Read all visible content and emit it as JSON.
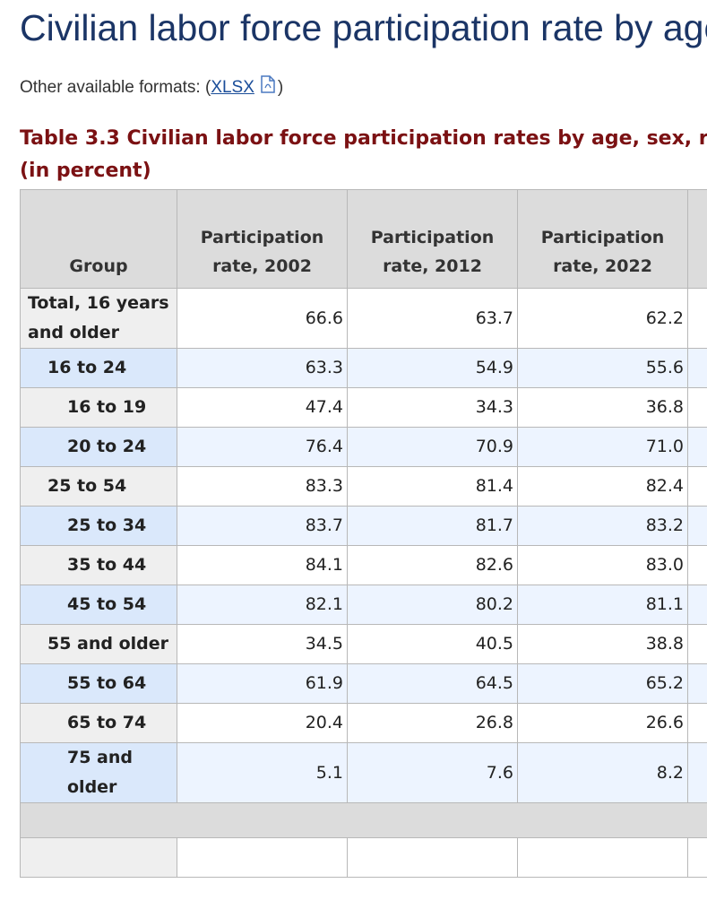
{
  "header": {
    "title": "Civilian labor force participation rate by age,",
    "formats_prefix": "Other available formats: (",
    "formats_link": "XLSX",
    "formats_suffix": ")"
  },
  "table": {
    "caption": [
      "Table 3.3 Civilian labor force participation rates by age, sex, r",
      "(in percent)"
    ],
    "columns": [
      "Group",
      "Participation rate, 2002",
      "Participation rate, 2012",
      "Participation rate, 2022"
    ],
    "rows": [
      [
        "Total, 16 years and older",
        "66.6",
        "63.7",
        "62.2"
      ],
      [
        "16 to 24",
        "63.3",
        "54.9",
        "55.6"
      ],
      [
        "16 to 19",
        "47.4",
        "34.3",
        "36.8"
      ],
      [
        "20 to 24",
        "76.4",
        "70.9",
        "71.0"
      ],
      [
        "25 to 54",
        "83.3",
        "81.4",
        "82.4"
      ],
      [
        "25 to 34",
        "83.7",
        "81.7",
        "83.2"
      ],
      [
        "35 to 44",
        "84.1",
        "82.6",
        "83.0"
      ],
      [
        "45 to 54",
        "82.1",
        "80.2",
        "81.1"
      ],
      [
        "55 and older",
        "34.5",
        "40.5",
        "38.8"
      ],
      [
        "55 to 64",
        "61.9",
        "64.5",
        "65.2"
      ],
      [
        "65 to 74",
        "20.4",
        "26.8",
        "26.6"
      ],
      [
        "75 and older",
        "5.1",
        "7.6",
        "8.2"
      ]
    ]
  }
}
